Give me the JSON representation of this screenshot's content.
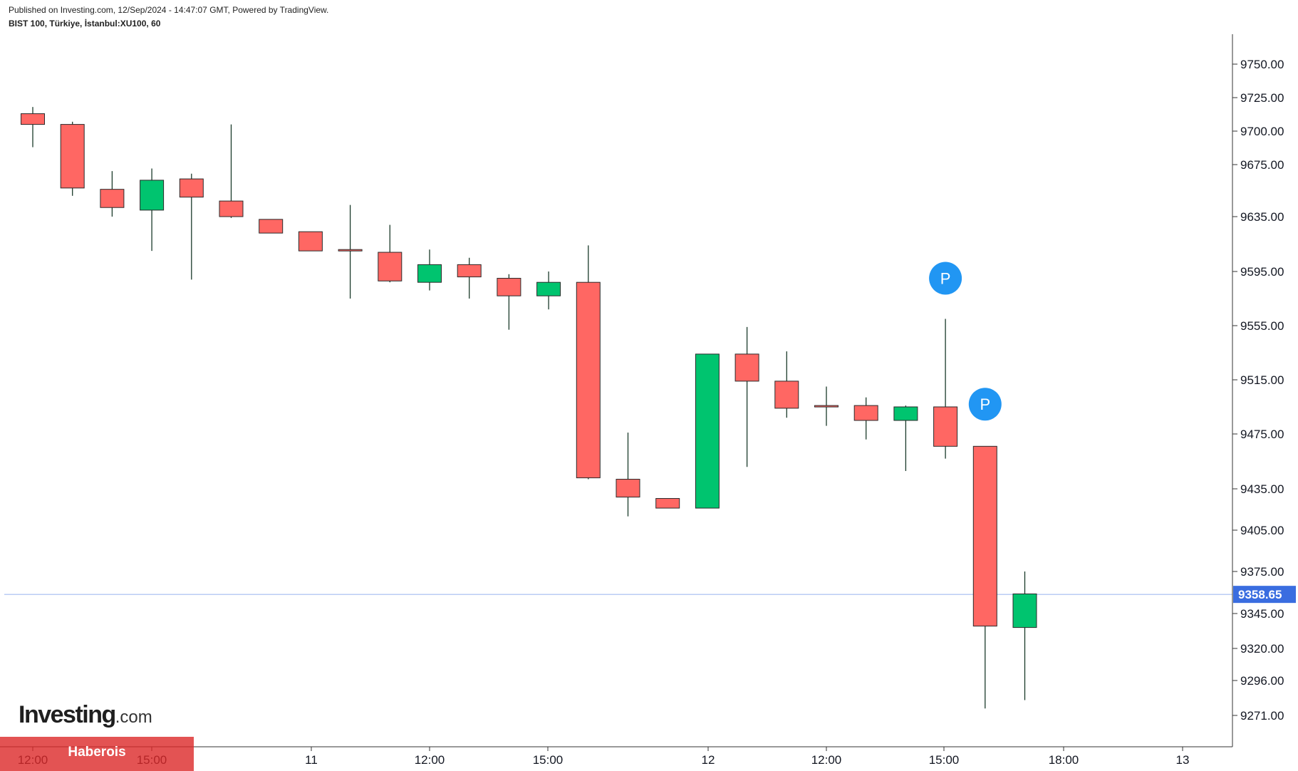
{
  "header": {
    "published": "Published on Investing.com, 12/Sep/2024 - 14:47:07 GMT, Powered by TradingView.",
    "symbol": "BIST 100, Türkiye, İstanbul:XU100, 60"
  },
  "logo": {
    "main": "Investing",
    "suffix": ".com"
  },
  "watermark": {
    "text": "Haberois"
  },
  "colors": {
    "up": "#00c46f",
    "down": "#ff6763",
    "wick": "#1a3a2a",
    "current_price": "#3a6de0",
    "marker": "#2196f3",
    "axis": "#333333"
  },
  "chart_data": {
    "type": "candlestick",
    "y_ticks": [
      9750,
      9725,
      9700,
      9675,
      9635,
      9595,
      9555,
      9515,
      9475,
      9435,
      9405,
      9375,
      9345,
      9320,
      9296,
      9271
    ],
    "y_tick_labels": [
      "9750.00",
      "9725.00",
      "9700.00",
      "9675.00",
      "9635.00",
      "9595.00",
      "9555.00",
      "9515.00",
      "9475.00",
      "9435.00",
      "9405.00",
      "9375.00",
      "9345.00",
      "9320.00",
      "9296.00",
      "9271.00"
    ],
    "x_labels": [
      "12:00",
      "15:00",
      "11",
      "12:00",
      "15:00",
      "12",
      "12:00",
      "15:00",
      "18:00",
      "13"
    ],
    "current_price": 9358.65,
    "current_price_label": "9358.65",
    "markers": [
      {
        "label": "P",
        "candle_index": 23,
        "price": 9590
      },
      {
        "label": "P",
        "candle_index": 24,
        "price": 9497
      }
    ],
    "candles": [
      {
        "o": 9713,
        "h": 9718,
        "l": 9688,
        "c": 9705
      },
      {
        "o": 9705,
        "h": 9707,
        "l": 9651,
        "c": 9657
      },
      {
        "o": 9656,
        "h": 9670,
        "l": 9635,
        "c": 9642
      },
      {
        "o": 9640,
        "h": 9672,
        "l": 9610,
        "c": 9663
      },
      {
        "o": 9664,
        "h": 9668,
        "l": 9589,
        "c": 9650
      },
      {
        "o": 9647,
        "h": 9705,
        "l": 9634,
        "c": 9635
      },
      {
        "o": 9633,
        "h": 9633,
        "l": 9623,
        "c": 9623
      },
      {
        "o": 9624,
        "h": 9624,
        "l": 9610,
        "c": 9610
      },
      {
        "o": 9611,
        "h": 9644,
        "l": 9575,
        "c": 9610
      },
      {
        "o": 9609,
        "h": 9629,
        "l": 9587,
        "c": 9588
      },
      {
        "o": 9587,
        "h": 9611,
        "l": 9581,
        "c": 9600
      },
      {
        "o": 9600,
        "h": 9605,
        "l": 9575,
        "c": 9591
      },
      {
        "o": 9590,
        "h": 9593,
        "l": 9552,
        "c": 9577
      },
      {
        "o": 9577,
        "h": 9595,
        "l": 9567,
        "c": 9587
      },
      {
        "o": 9587,
        "h": 9614,
        "l": 9442,
        "c": 9443
      },
      {
        "o": 9442,
        "h": 9476,
        "l": 9415,
        "c": 9429
      },
      {
        "o": 9428,
        "h": 9428,
        "l": 9421,
        "c": 9421
      },
      {
        "o": 9421,
        "h": 9534,
        "l": 9421,
        "c": 9534
      },
      {
        "o": 9534,
        "h": 9554,
        "l": 9451,
        "c": 9514
      },
      {
        "o": 9514,
        "h": 9536,
        "l": 9487,
        "c": 9494
      },
      {
        "o": 9496,
        "h": 9510,
        "l": 9481,
        "c": 9496
      },
      {
        "o": 9496,
        "h": 9502,
        "l": 9471,
        "c": 9485
      },
      {
        "o": 9485,
        "h": 9496,
        "l": 9448,
        "c": 9495
      },
      {
        "o": 9495,
        "h": 9560,
        "l": 9457,
        "c": 9466
      },
      {
        "o": 9466,
        "h": 9466,
        "l": 9276,
        "c": 9336
      },
      {
        "o": 9335,
        "h": 9375,
        "l": 9282,
        "c": 9359
      }
    ]
  }
}
